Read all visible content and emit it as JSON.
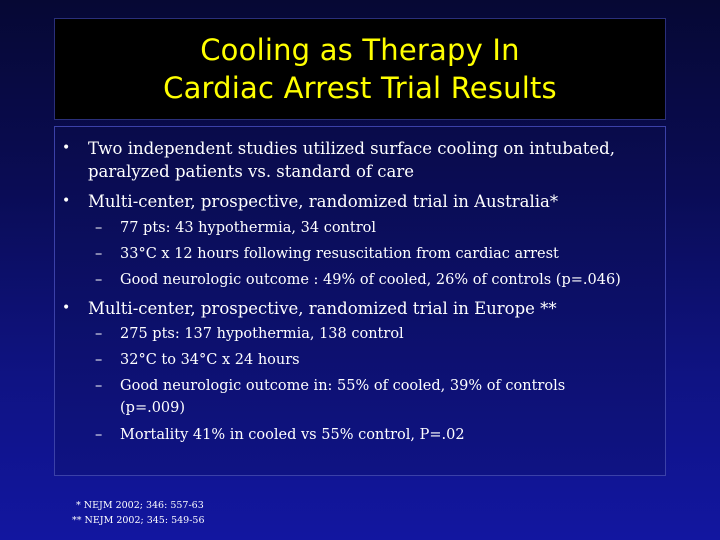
{
  "title": {
    "line1": "Cooling as Therapy In",
    "line2": "Cardiac Arrest Trial Results"
  },
  "bullets": [
    {
      "lines": [
        "Two independent studies utilized surface cooling on intubated,",
        "paralyzed patients vs. standard of care"
      ]
    },
    {
      "lines": [
        "Multi-center, prospective, randomized trial in Australia*"
      ],
      "sub": [
        [
          "77 pts: 43 hypothermia, 34 control"
        ],
        [
          "33°C x 12 hours following resuscitation from cardiac arrest"
        ],
        [
          "Good neurologic outcome : 49% of cooled, 26% of controls (p=.046)"
        ]
      ]
    },
    {
      "lines": [
        "Multi-center, prospective, randomized trial in Europe **"
      ],
      "sub": [
        [
          "275 pts: 137 hypothermia, 138 control"
        ],
        [
          "32°C to 34°C x 24 hours"
        ],
        [
          "Good neurologic outcome in: 55% of cooled, 39% of controls",
          "(p=.009)"
        ],
        [
          "Mortality 41% in cooled vs 55% control, P=.02"
        ]
      ]
    }
  ],
  "bullet_glyph": "•",
  "dash_glyph": "–",
  "footnotes": [
    "* NEJM 2002; 346: 557-63",
    "** NEJM 2002; 345: 549-56"
  ],
  "colors": {
    "background": "#0d0f6a",
    "title_box": "#000000",
    "title_text": "#ffff00",
    "body_text": "#ffffff"
  }
}
